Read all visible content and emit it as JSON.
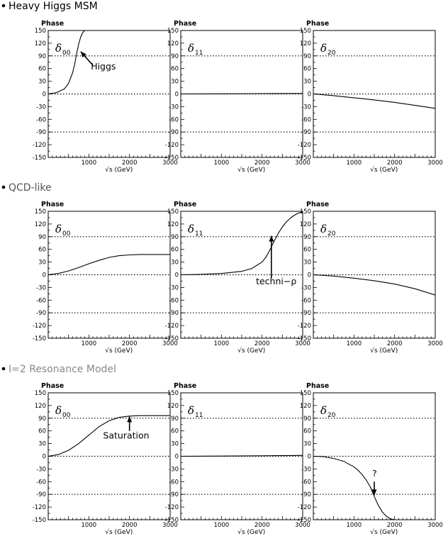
{
  "sections": [
    {
      "title": "Heavy Higgs MSM",
      "title_color": "#000000"
    },
    {
      "title": "QCD-like",
      "title_color": "#555555"
    },
    {
      "title": "I=2 Resonance Model",
      "title_color": "#888888"
    }
  ],
  "chart_data": [
    {
      "type": "line",
      "section": "Heavy Higgs MSM",
      "panel_label": "δ",
      "panel_sub": "00",
      "ylabel": "Phase",
      "xlabel": "√s (GeV)",
      "xlim": [
        0,
        3000
      ],
      "ylim": [
        -150,
        150
      ],
      "xticks": [
        1000,
        2000,
        3000
      ],
      "yticks": [
        150,
        120,
        90,
        60,
        30,
        0,
        -30,
        -60,
        -90,
        -120,
        -150
      ],
      "ytick_labels": [
        "150",
        "120",
        "90",
        "60",
        "30",
        "0",
        "-30",
        "-60",
        "-90",
        "-120",
        "-150"
      ],
      "dotted_lines": [
        90,
        0,
        -90
      ],
      "x": [
        0,
        200,
        400,
        500,
        600,
        650,
        700,
        750,
        800,
        850,
        900,
        950,
        1000
      ],
      "y": [
        0,
        3,
        12,
        25,
        50,
        70,
        95,
        118,
        135,
        145,
        150,
        150,
        150
      ],
      "annotation": {
        "text": "Higgs",
        "target": [
          800,
          100
        ],
        "text_at": [
          1100,
          62
        ]
      }
    },
    {
      "type": "line",
      "section": "Heavy Higgs MSM",
      "panel_label": "δ",
      "panel_sub": "11",
      "ylabel": "Phase",
      "xlabel": "√s (GeV)",
      "xlim": [
        0,
        3000
      ],
      "ylim": [
        -150,
        150
      ],
      "xticks": [
        1000,
        2000,
        3000
      ],
      "yticks": [
        150,
        120,
        90,
        60,
        30,
        0,
        -30,
        -60,
        -90,
        -120,
        -150
      ],
      "ytick_labels": [
        "150",
        "120",
        "90",
        "60",
        "30",
        "0",
        "-30",
        "-60",
        "-90",
        "-120",
        "-150"
      ],
      "dotted_lines": [
        90,
        0,
        -90
      ],
      "x": [
        0,
        1000,
        2000,
        3000
      ],
      "y": [
        0,
        0.3,
        0.8,
        1.2
      ]
    },
    {
      "type": "line",
      "section": "Heavy Higgs MSM",
      "panel_label": "δ",
      "panel_sub": "20",
      "ylabel": "Phase",
      "xlabel": "√s (GeV)",
      "xlim": [
        0,
        3000
      ],
      "ylim": [
        -150,
        150
      ],
      "xticks": [
        1000,
        2000,
        3000
      ],
      "yticks": [
        150,
        120,
        90,
        60,
        30,
        0,
        -30,
        -60,
        -90,
        -120,
        -150
      ],
      "ytick_labels": [
        "150",
        "120",
        "90",
        "60",
        "30",
        "0",
        "-30",
        "-60",
        "-90",
        "-120",
        "-150"
      ],
      "dotted_lines": [
        90,
        0,
        -90
      ],
      "x": [
        0,
        500,
        1000,
        1500,
        2000,
        2500,
        3000
      ],
      "y": [
        0,
        -4,
        -9,
        -14,
        -20,
        -27,
        -34
      ]
    },
    {
      "type": "line",
      "section": "QCD-like",
      "panel_label": "δ",
      "panel_sub": "00",
      "ylabel": "Phase",
      "xlabel": "√s (GeV)",
      "xlim": [
        0,
        3000
      ],
      "ylim": [
        -150,
        150
      ],
      "xticks": [
        1000,
        2000,
        3000
      ],
      "yticks": [
        150,
        120,
        90,
        60,
        30,
        0,
        -30,
        -60,
        -90,
        -120,
        -150
      ],
      "ytick_labels": [
        "150",
        "120",
        "90",
        "60",
        "30",
        "0",
        "-30",
        "-60",
        "-90",
        "-120",
        "-150"
      ],
      "dotted_lines": [
        90,
        0,
        -90
      ],
      "x": [
        0,
        250,
        500,
        750,
        1000,
        1250,
        1500,
        1750,
        2000,
        2250,
        2500,
        3000
      ],
      "y": [
        0,
        3,
        9,
        17,
        26,
        34,
        41,
        45,
        47,
        48,
        48,
        48
      ]
    },
    {
      "type": "line",
      "section": "QCD-like",
      "panel_label": "δ",
      "panel_sub": "11",
      "ylabel": "Phase",
      "xlabel": "√s (GeV)",
      "xlim": [
        0,
        3000
      ],
      "ylim": [
        -150,
        150
      ],
      "xticks": [
        1000,
        2000,
        3000
      ],
      "yticks": [
        150,
        120,
        90,
        60,
        30,
        0,
        -30,
        -60,
        -90,
        -120,
        -150
      ],
      "ytick_labels": [
        "150",
        "120",
        "90",
        "60",
        "30",
        "0",
        "-30",
        "-60",
        "-90",
        "-120",
        "-150"
      ],
      "dotted_lines": [
        90,
        0,
        -90
      ],
      "x": [
        0,
        500,
        1000,
        1500,
        1750,
        2000,
        2100,
        2200,
        2300,
        2400,
        2500,
        2600,
        2700,
        2800,
        2900,
        3000
      ],
      "y": [
        0,
        1,
        3,
        8,
        15,
        30,
        42,
        60,
        80,
        98,
        113,
        125,
        134,
        141,
        146,
        149
      ],
      "annotation": {
        "text": "techni−ρ",
        "target": [
          2230,
          92
        ],
        "text_at": [
          2100,
          -20
        ]
      }
    },
    {
      "type": "line",
      "section": "QCD-like",
      "panel_label": "δ",
      "panel_sub": "20",
      "ylabel": "Phase",
      "xlabel": "√s (GeV)",
      "xlim": [
        0,
        3000
      ],
      "ylim": [
        -150,
        150
      ],
      "xticks": [
        1000,
        2000,
        3000
      ],
      "yticks": [
        150,
        120,
        90,
        60,
        30,
        0,
        -30,
        -60,
        -90,
        -120,
        -150
      ],
      "ytick_labels": [
        "150",
        "120",
        "90",
        "60",
        "30",
        "0",
        "-30",
        "-60",
        "-90",
        "-120",
        "-150"
      ],
      "dotted_lines": [
        90,
        0,
        -90
      ],
      "x": [
        0,
        500,
        1000,
        1500,
        2000,
        2500,
        3000
      ],
      "y": [
        0,
        -3,
        -8,
        -14,
        -22,
        -33,
        -48
      ]
    },
    {
      "type": "line",
      "section": "I=2 Resonance Model",
      "panel_label": "δ",
      "panel_sub": "00",
      "ylabel": "Phase",
      "xlabel": "√s (GeV)",
      "xlim": [
        0,
        3000
      ],
      "ylim": [
        -150,
        150
      ],
      "xticks": [
        1000,
        2000,
        3000
      ],
      "yticks": [
        150,
        120,
        90,
        60,
        30,
        0,
        -30,
        -60,
        -90,
        -120,
        -150
      ],
      "ytick_labels": [
        "150",
        "120",
        "90",
        "60",
        "30",
        "0",
        "-30",
        "-60",
        "-90",
        "-120",
        "-150"
      ],
      "dotted_lines": [
        90,
        0,
        -90
      ],
      "x": [
        0,
        250,
        500,
        750,
        1000,
        1250,
        1500,
        1750,
        2000,
        2250,
        2500,
        3000
      ],
      "y": [
        0,
        4,
        14,
        30,
        50,
        70,
        84,
        92,
        95,
        96,
        96,
        96
      ],
      "annotation": {
        "text": "Saturation",
        "target": [
          2000,
          94
        ],
        "text_at": [
          1300,
          30
        ]
      }
    },
    {
      "type": "line",
      "section": "I=2 Resonance Model",
      "panel_label": "δ",
      "panel_sub": "11",
      "ylabel": "Phase",
      "xlabel": "√s (GeV)",
      "xlim": [
        0,
        3000
      ],
      "ylim": [
        -150,
        150
      ],
      "xticks": [
        1000,
        2000,
        3000
      ],
      "yticks": [
        150,
        120,
        90,
        60,
        30,
        0,
        -30,
        -60,
        -90,
        -120,
        -150
      ],
      "ytick_labels": [
        "150",
        "120",
        "90",
        "60",
        "30",
        "0",
        "-30",
        "-60",
        "-90",
        "-120",
        "-150"
      ],
      "dotted_lines": [
        90,
        0,
        -90
      ],
      "x": [
        0,
        1000,
        2000,
        3000
      ],
      "y": [
        0,
        0.5,
        1.2,
        2
      ]
    },
    {
      "type": "line",
      "section": "I=2 Resonance Model",
      "panel_label": "δ",
      "panel_sub": "20",
      "ylabel": "Phase",
      "xlabel": "√s (GeV)",
      "xlim": [
        0,
        3000
      ],
      "ylim": [
        -150,
        150
      ],
      "xticks": [
        1000,
        2000,
        3000
      ],
      "yticks": [
        150,
        120,
        90,
        60,
        30,
        0,
        -30,
        -60,
        -90,
        -120,
        -150
      ],
      "ytick_labels": [
        "150",
        "120",
        "90",
        "60",
        "30",
        "0",
        "-30",
        "-60",
        "-90",
        "-120",
        "-150"
      ],
      "dotted_lines": [
        90,
        0,
        -90
      ],
      "x": [
        0,
        250,
        500,
        750,
        1000,
        1100,
        1200,
        1300,
        1400,
        1500,
        1600,
        1700,
        1800,
        1900,
        2000
      ],
      "y": [
        0,
        -1,
        -5,
        -12,
        -25,
        -33,
        -43,
        -56,
        -72,
        -95,
        -116,
        -132,
        -142,
        -148,
        -150
      ],
      "annotation": {
        "text": "?",
        "target": [
          1500,
          -92
        ],
        "text_at": [
          1400,
          -52
        ]
      }
    }
  ]
}
